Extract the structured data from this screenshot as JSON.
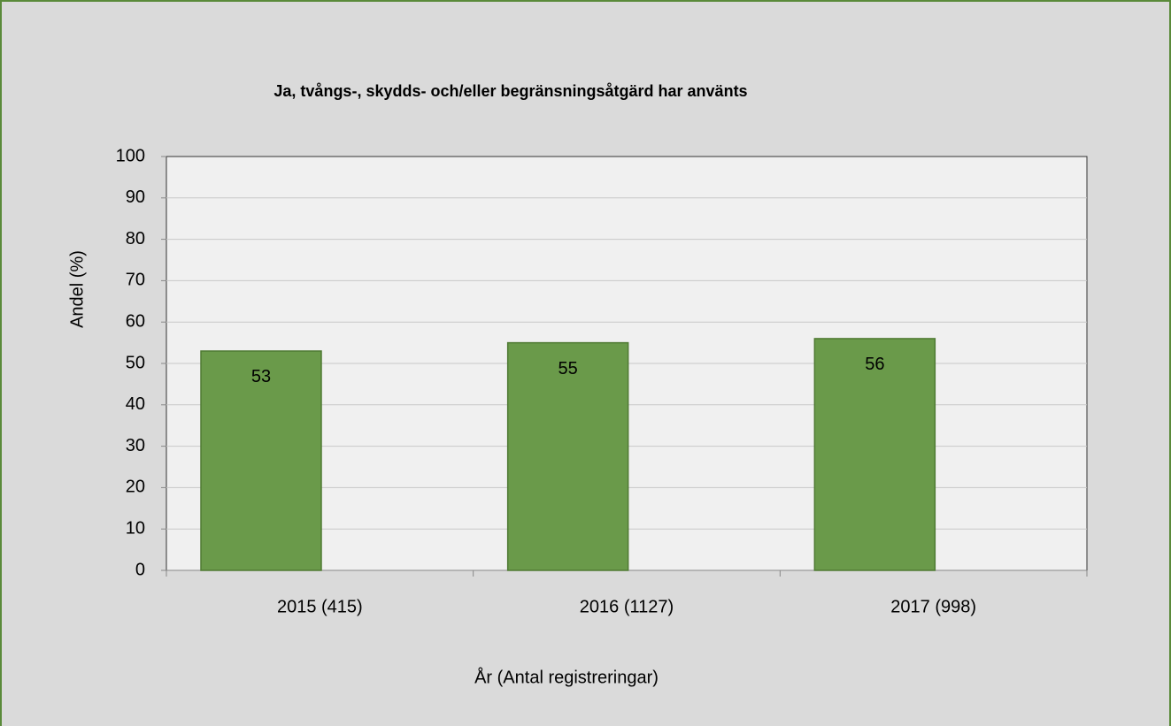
{
  "chart_data": {
    "type": "bar",
    "title": "Ja, tvångs-, skydds- och/eller begränsningsåtgärd  har använts",
    "x_label": "År (Antal registreringar)",
    "y_label": "Andel (%)",
    "categories": [
      "2015 (415)",
      "2016 (1127)",
      "2017 (998)"
    ],
    "values": [
      53,
      55,
      56
    ],
    "color": "#6a9a4a",
    "ylim": [
      0,
      100
    ],
    "yticks": [
      0,
      10,
      20,
      30,
      40,
      50,
      60,
      70,
      80,
      90,
      100
    ],
    "grid": true
  }
}
